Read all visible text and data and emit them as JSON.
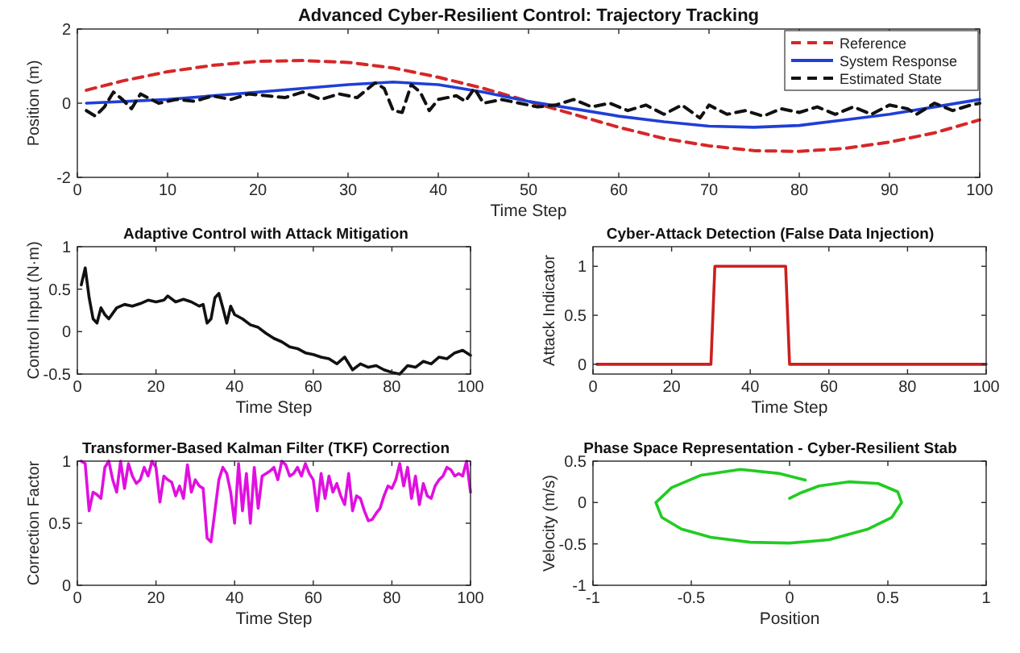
{
  "chart_data": [
    {
      "type": "line",
      "title": "Advanced Cyber-Resilient Control: Trajectory Tracking",
      "xlabel": "Time Step",
      "ylabel": "Position (m)",
      "xlim": [
        0,
        100
      ],
      "xticks": [
        0,
        10,
        20,
        30,
        40,
        50,
        60,
        70,
        80,
        90,
        100
      ],
      "ylim": [
        -2,
        2
      ],
      "yticks": [
        -2,
        0,
        2
      ],
      "legend": "top right",
      "series": [
        {
          "name": "Reference",
          "color": "#d62728",
          "line_style": "dashed",
          "x": [
            1,
            5,
            10,
            15,
            20,
            25,
            30,
            35,
            40,
            45,
            50,
            55,
            60,
            65,
            70,
            75,
            80,
            85,
            90,
            95,
            100
          ],
          "values": [
            0.35,
            0.6,
            0.85,
            1.02,
            1.13,
            1.15,
            1.1,
            0.95,
            0.7,
            0.4,
            0.05,
            -0.3,
            -0.65,
            -0.95,
            -1.15,
            -1.28,
            -1.3,
            -1.22,
            -1.05,
            -0.8,
            -0.45
          ]
        },
        {
          "name": "System Response",
          "color": "#1f3fd6",
          "line_style": "solid",
          "x": [
            1,
            10,
            20,
            30,
            35,
            40,
            45,
            50,
            55,
            60,
            65,
            70,
            75,
            80,
            85,
            90,
            95,
            100
          ],
          "values": [
            0,
            0.1,
            0.3,
            0.5,
            0.57,
            0.5,
            0.3,
            0.05,
            -0.15,
            -0.35,
            -0.5,
            -0.62,
            -0.65,
            -0.6,
            -0.45,
            -0.3,
            -0.1,
            0.1
          ]
        },
        {
          "name": "Estimated State",
          "color": "#111111",
          "line_style": "dashed",
          "x": [
            1,
            2,
            3,
            4,
            5,
            6,
            7,
            9,
            11,
            13,
            15,
            17,
            19,
            21,
            23,
            25,
            27,
            29,
            31,
            33,
            34,
            35,
            36,
            37,
            38,
            39,
            40,
            42,
            43,
            44,
            45,
            47,
            49,
            51,
            53,
            55,
            57,
            59,
            61,
            63,
            65,
            67,
            69,
            70,
            72,
            74,
            76,
            78,
            80,
            82,
            84,
            86,
            88,
            90,
            92,
            93,
            95,
            97,
            99,
            100
          ],
          "values": [
            -0.2,
            -0.35,
            -0.1,
            0.3,
            0.1,
            -0.15,
            0.25,
            0,
            0.1,
            0.05,
            0.2,
            0.1,
            0.25,
            0.2,
            0.15,
            0.3,
            0.1,
            0.25,
            0.15,
            0.55,
            0.4,
            -0.2,
            -0.25,
            0.5,
            0.3,
            -0.2,
            0.1,
            0.2,
            0.05,
            0.4,
            0,
            0.1,
            0,
            -0.1,
            -0.05,
            0.1,
            -0.1,
            0,
            -0.2,
            -0.05,
            -0.3,
            -0.05,
            -0.4,
            -0.05,
            -0.3,
            -0.2,
            -0.35,
            -0.15,
            -0.25,
            -0.1,
            -0.3,
            -0.1,
            -0.3,
            -0.05,
            -0.15,
            -0.3,
            0,
            -0.2,
            -0.05,
            0
          ]
        }
      ]
    },
    {
      "type": "line",
      "title": "Adaptive Control with Attack Mitigation",
      "xlabel": "Time Step",
      "ylabel": "Control Input (N·m)",
      "xlim": [
        0,
        100
      ],
      "xticks": [
        0,
        20,
        40,
        60,
        80,
        100
      ],
      "ylim": [
        -0.5,
        1
      ],
      "yticks": [
        -0.5,
        0,
        0.5,
        1
      ],
      "series": [
        {
          "color": "#111111",
          "line_style": "solid",
          "x": [
            1,
            2,
            3,
            4,
            5,
            6,
            7,
            8,
            10,
            12,
            14,
            16,
            18,
            20,
            22,
            23,
            25,
            27,
            29,
            31,
            32,
            33,
            34,
            35,
            36,
            37,
            38,
            39,
            40,
            42,
            44,
            46,
            48,
            50,
            52,
            54,
            56,
            58,
            60,
            62,
            64,
            66,
            68,
            70,
            72,
            74,
            76,
            78,
            80,
            82,
            84,
            86,
            88,
            90,
            92,
            94,
            96,
            98,
            100
          ],
          "values": [
            0.55,
            0.75,
            0.4,
            0.15,
            0.1,
            0.28,
            0.2,
            0.15,
            0.28,
            0.32,
            0.3,
            0.33,
            0.37,
            0.35,
            0.37,
            0.42,
            0.35,
            0.38,
            0.35,
            0.3,
            0.32,
            0.1,
            0.15,
            0.4,
            0.45,
            0.28,
            0.1,
            0.3,
            0.2,
            0.15,
            0.08,
            0.05,
            -0.02,
            -0.08,
            -0.12,
            -0.18,
            -0.2,
            -0.25,
            -0.27,
            -0.3,
            -0.32,
            -0.38,
            -0.3,
            -0.45,
            -0.38,
            -0.42,
            -0.4,
            -0.45,
            -0.48,
            -0.5,
            -0.4,
            -0.42,
            -0.35,
            -0.38,
            -0.3,
            -0.32,
            -0.25,
            -0.22,
            -0.28
          ]
        }
      ]
    },
    {
      "type": "line",
      "title": "Cyber-Attack Detection (False Data Injection)",
      "xlabel": "Time Step",
      "ylabel": "Attack Indicator",
      "xlim": [
        0,
        100
      ],
      "xticks": [
        0,
        20,
        40,
        60,
        80,
        100
      ],
      "ylim": [
        -0.1,
        1.2
      ],
      "yticks": [
        0,
        0.5,
        1
      ],
      "series": [
        {
          "color": "#cc1f1f",
          "line_style": "solid",
          "x": [
            1,
            30,
            31,
            49,
            50,
            100
          ],
          "values": [
            0,
            0,
            1,
            1,
            0,
            0
          ]
        }
      ]
    },
    {
      "type": "line",
      "title": "Transformer-Based Kalman Filter (TKF) Correction",
      "xlabel": "Time Step",
      "ylabel": "Correction Factor",
      "xlim": [
        0,
        100
      ],
      "xticks": [
        0,
        20,
        40,
        60,
        80,
        100
      ],
      "ylim": [
        0,
        1
      ],
      "yticks": [
        0,
        0.5,
        1
      ],
      "series": [
        {
          "color": "#e010e0",
          "line_style": "solid",
          "x": [
            1,
            2,
            3,
            4,
            5,
            6,
            7,
            8,
            9,
            10,
            11,
            12,
            13,
            14,
            15,
            16,
            17,
            18,
            19,
            20,
            21,
            22,
            23,
            24,
            25,
            26,
            27,
            28,
            29,
            30,
            31,
            32,
            33,
            34,
            35,
            36,
            37,
            38,
            39,
            40,
            41,
            42,
            43,
            44,
            45,
            46,
            47,
            48,
            49,
            50,
            51,
            52,
            53,
            54,
            55,
            56,
            57,
            58,
            59,
            60,
            61,
            62,
            63,
            64,
            65,
            66,
            67,
            68,
            69,
            70,
            71,
            72,
            73,
            74,
            75,
            76,
            77,
            78,
            79,
            80,
            81,
            82,
            83,
            84,
            85,
            86,
            87,
            88,
            89,
            90,
            91,
            92,
            93,
            94,
            95,
            96,
            97,
            98,
            99,
            100
          ],
          "values": [
            1,
            0.98,
            0.6,
            0.75,
            0.73,
            0.7,
            0.95,
            1,
            0.85,
            0.75,
            1,
            0.78,
            0.98,
            0.88,
            0.82,
            0.85,
            0.95,
            0.88,
            1,
            0.95,
            0.67,
            0.88,
            0.85,
            0.83,
            0.72,
            0.8,
            0.7,
            0.97,
            0.75,
            0.85,
            0.8,
            0.78,
            0.38,
            0.35,
            0.6,
            0.85,
            0.95,
            0.9,
            0.75,
            0.5,
            0.98,
            0.6,
            0.9,
            0.5,
            0.95,
            0.62,
            0.88,
            0.9,
            0.92,
            0.95,
            0.85,
            1,
            0.97,
            0.88,
            0.9,
            0.95,
            0.88,
            0.98,
            0.9,
            0.85,
            0.6,
            0.9,
            0.7,
            0.88,
            0.75,
            0.82,
            0.72,
            0.65,
            0.9,
            0.6,
            0.72,
            0.7,
            0.6,
            0.52,
            0.53,
            0.58,
            0.62,
            0.72,
            0.8,
            0.78,
            0.85,
            0.98,
            0.8,
            0.95,
            0.7,
            0.88,
            0.65,
            0.82,
            0.72,
            0.7,
            0.8,
            0.85,
            0.88,
            0.95,
            0.93,
            0.88,
            0.9,
            0.88,
            1,
            0.75
          ]
        }
      ]
    },
    {
      "type": "line",
      "title": "Phase Space Representation - Cyber-Resilient Stab",
      "xlabel": "Position",
      "ylabel": "Velocity (m/s)",
      "xlim": [
        -1,
        1
      ],
      "xticks": [
        -1,
        -0.5,
        0,
        0.5,
        1
      ],
      "ylim": [
        -1,
        0.5
      ],
      "yticks": [
        -1,
        -0.5,
        0,
        0.5
      ],
      "series": [
        {
          "color": "#22cc22",
          "line_style": "solid",
          "x": [
            0.08,
            -0.05,
            -0.25,
            -0.45,
            -0.6,
            -0.68,
            -0.65,
            -0.55,
            -0.4,
            -0.2,
            0,
            0.2,
            0.4,
            0.52,
            0.57,
            0.55,
            0.45,
            0.3,
            0.15,
            0.05,
            0
          ],
          "values": [
            0.27,
            0.35,
            0.4,
            0.33,
            0.18,
            0,
            -0.18,
            -0.32,
            -0.42,
            -0.48,
            -0.49,
            -0.45,
            -0.32,
            -0.18,
            0,
            0.13,
            0.23,
            0.25,
            0.2,
            0.11,
            0.05
          ]
        }
      ]
    }
  ]
}
